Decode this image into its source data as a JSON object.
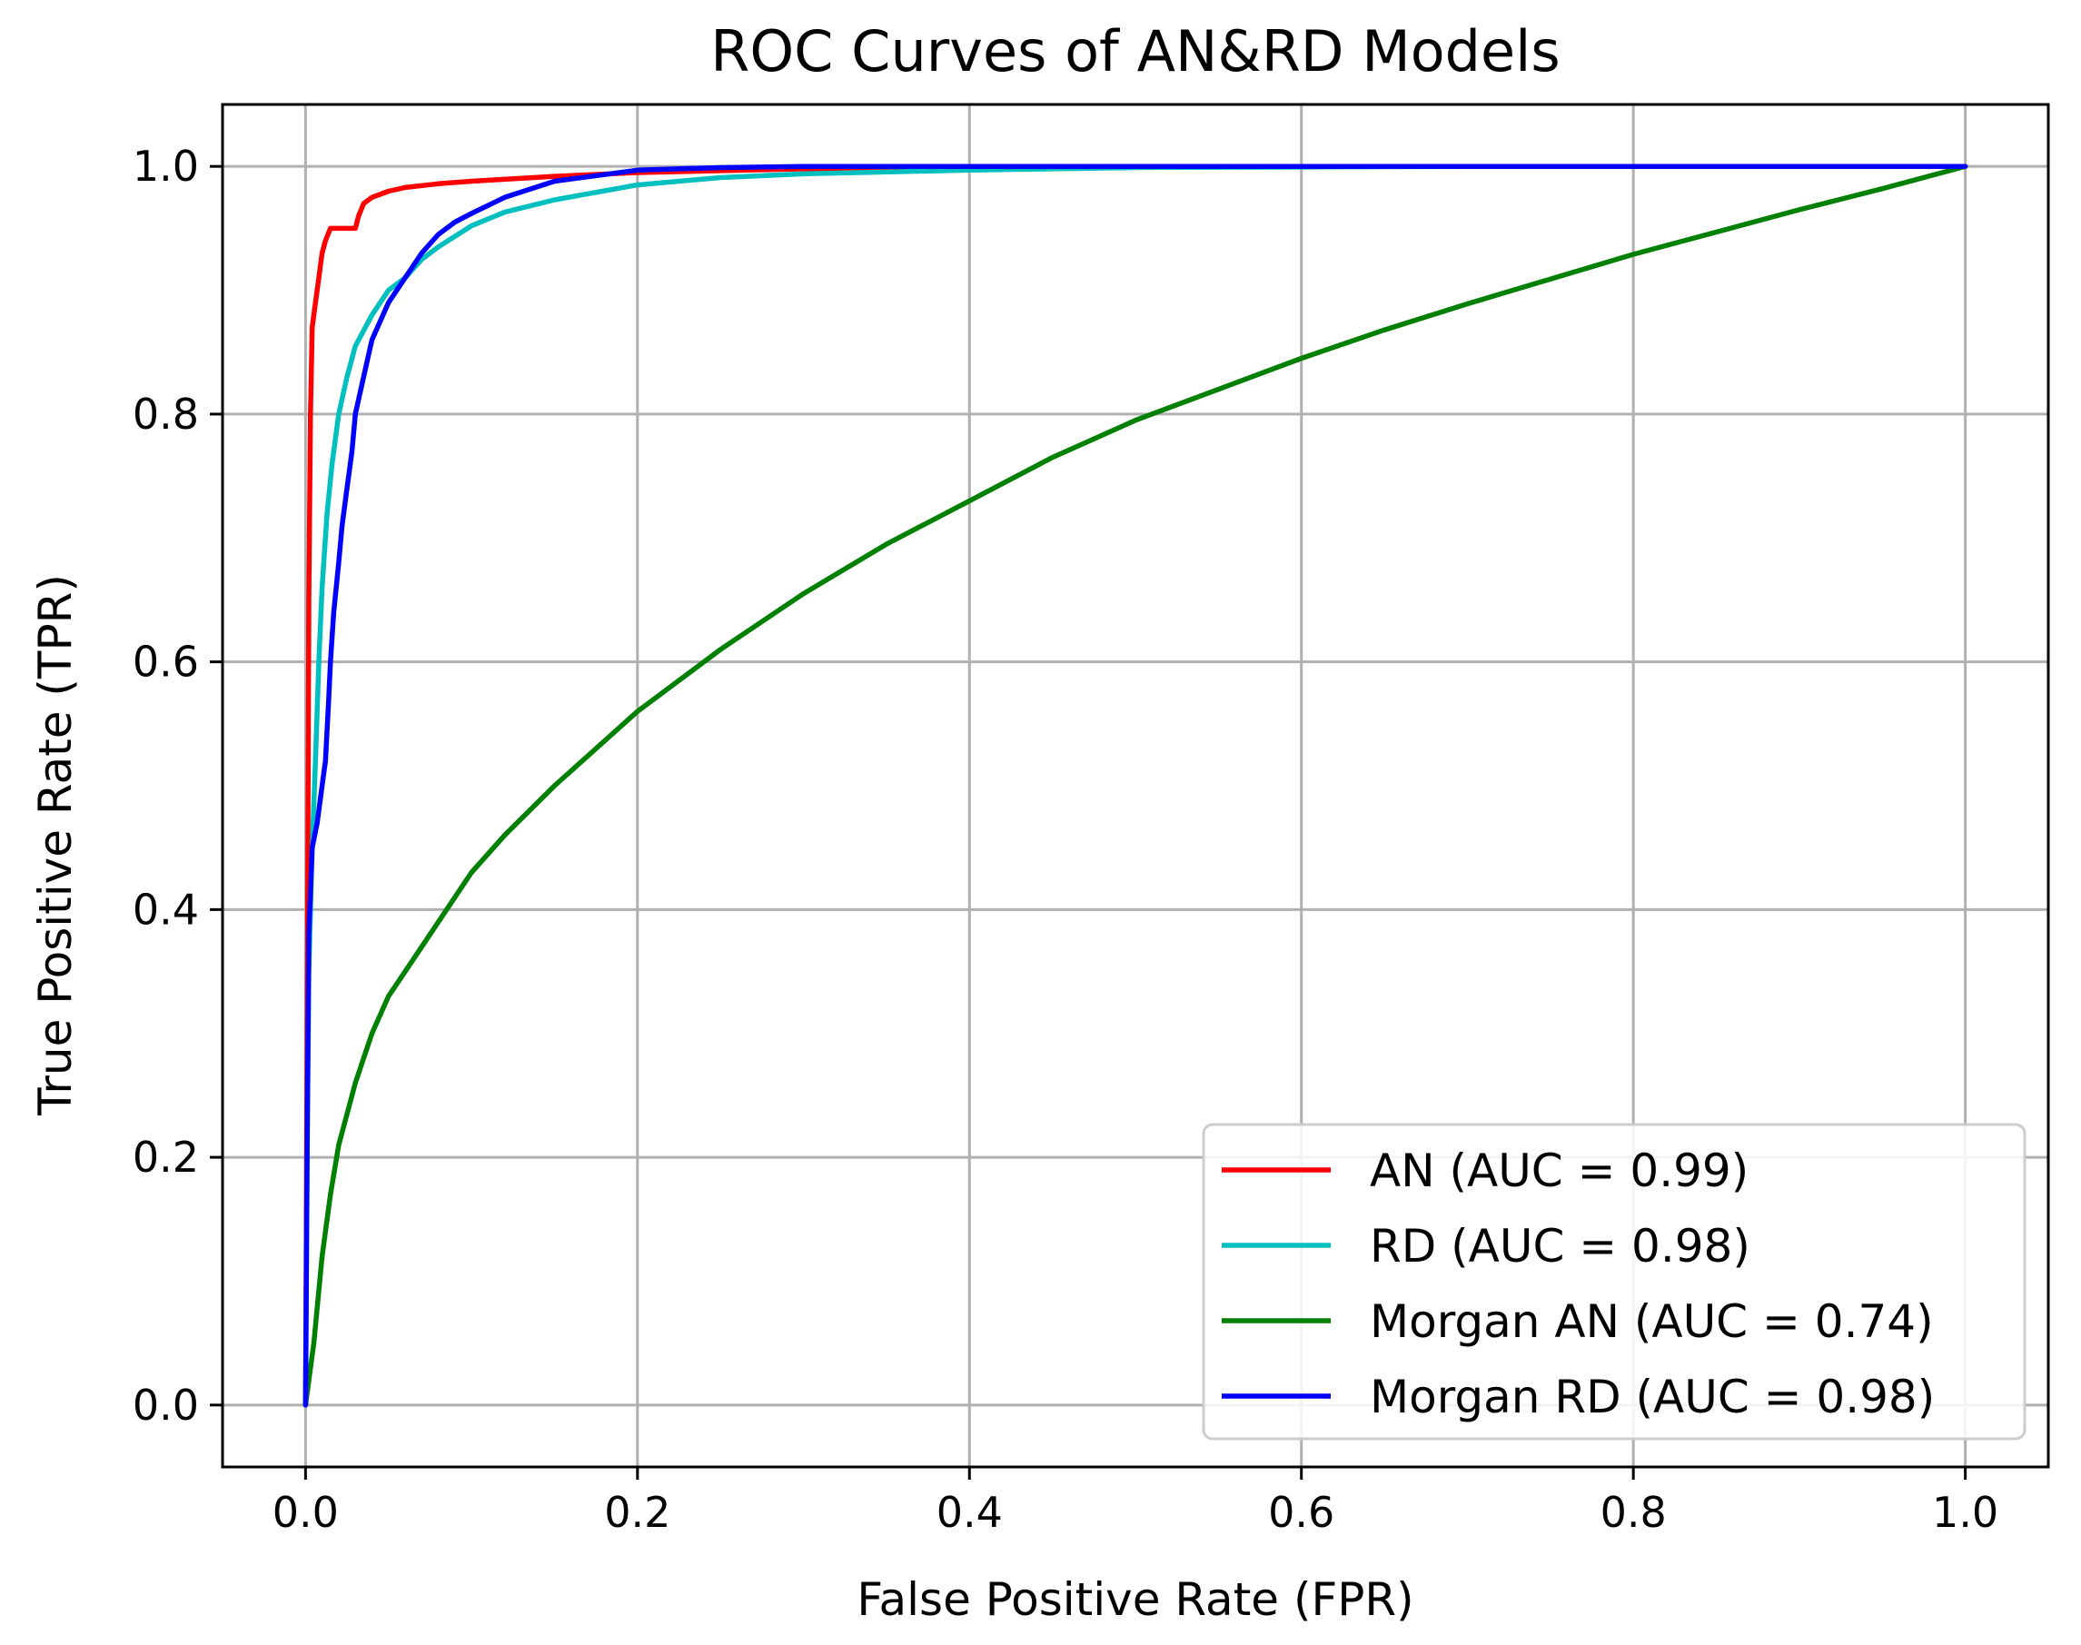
{
  "chart_data": {
    "type": "line",
    "title": "ROC Curves of AN&RD Models",
    "xlabel": "False Positive Rate (FPR)",
    "ylabel": "True Positive Rate (TPR)",
    "xlim": [
      -0.05,
      1.05
    ],
    "ylim": [
      -0.05,
      1.05
    ],
    "grid": true,
    "legend_position": "lower-right",
    "x_ticks": [
      0.0,
      0.2,
      0.4,
      0.6,
      0.8,
      1.0
    ],
    "x_tick_labels": [
      "0.0",
      "0.2",
      "0.4",
      "0.6",
      "0.8",
      "1.0"
    ],
    "y_ticks": [
      0.0,
      0.2,
      0.4,
      0.6,
      0.8,
      1.0
    ],
    "y_tick_labels": [
      "0.0",
      "0.2",
      "0.4",
      "0.6",
      "0.8",
      "1.0"
    ],
    "series": [
      {
        "name": "AN (AUC = 0.99)",
        "color": "#ff0000",
        "x": [
          0.0,
          0.001,
          0.002,
          0.003,
          0.004,
          0.006,
          0.008,
          0.01,
          0.012,
          0.015,
          0.02,
          0.025,
          0.03,
          0.032,
          0.035,
          0.04,
          0.05,
          0.06,
          0.08,
          0.1,
          0.15,
          0.2,
          0.3,
          0.5,
          1.0
        ],
        "y": [
          0.0,
          0.3,
          0.65,
          0.8,
          0.87,
          0.89,
          0.91,
          0.93,
          0.94,
          0.95,
          0.95,
          0.95,
          0.95,
          0.96,
          0.97,
          0.975,
          0.98,
          0.983,
          0.986,
          0.988,
          0.992,
          0.995,
          0.998,
          1.0,
          1.0
        ]
      },
      {
        "name": "RD (AUC = 0.98)",
        "color": "#00bfbf",
        "x": [
          0.0,
          0.001,
          0.002,
          0.004,
          0.006,
          0.008,
          0.01,
          0.013,
          0.016,
          0.02,
          0.025,
          0.03,
          0.04,
          0.05,
          0.06,
          0.07,
          0.08,
          0.1,
          0.12,
          0.15,
          0.2,
          0.25,
          0.3,
          0.4,
          0.5,
          0.7,
          1.0
        ],
        "y": [
          0.0,
          0.2,
          0.35,
          0.45,
          0.52,
          0.6,
          0.66,
          0.72,
          0.76,
          0.8,
          0.83,
          0.855,
          0.88,
          0.9,
          0.91,
          0.925,
          0.935,
          0.952,
          0.963,
          0.973,
          0.985,
          0.991,
          0.994,
          0.997,
          0.999,
          1.0,
          1.0
        ]
      },
      {
        "name": "Morgan AN (AUC = 0.74)",
        "color": "#008000",
        "x": [
          0.0,
          0.003,
          0.005,
          0.01,
          0.015,
          0.02,
          0.03,
          0.04,
          0.05,
          0.07,
          0.1,
          0.12,
          0.15,
          0.2,
          0.25,
          0.3,
          0.35,
          0.4,
          0.45,
          0.5,
          0.55,
          0.6,
          0.65,
          0.7,
          0.75,
          0.8,
          0.85,
          0.9,
          0.95,
          1.0
        ],
        "y": [
          0.0,
          0.03,
          0.05,
          0.12,
          0.17,
          0.21,
          0.26,
          0.3,
          0.33,
          0.37,
          0.43,
          0.46,
          0.5,
          0.56,
          0.61,
          0.655,
          0.695,
          0.73,
          0.765,
          0.795,
          0.82,
          0.845,
          0.868,
          0.889,
          0.909,
          0.929,
          0.947,
          0.965,
          0.982,
          1.0
        ]
      },
      {
        "name": "Morgan RD (AUC = 0.98)",
        "color": "#0000ff",
        "x": [
          0.0,
          0.001,
          0.002,
          0.004,
          0.007,
          0.01,
          0.012,
          0.014,
          0.015,
          0.017,
          0.02,
          0.022,
          0.025,
          0.028,
          0.03,
          0.035,
          0.04,
          0.05,
          0.06,
          0.07,
          0.08,
          0.09,
          0.1,
          0.12,
          0.15,
          0.2,
          0.25,
          0.3,
          0.5,
          1.0
        ],
        "y": [
          0.0,
          0.22,
          0.38,
          0.45,
          0.47,
          0.5,
          0.52,
          0.57,
          0.6,
          0.64,
          0.68,
          0.71,
          0.74,
          0.77,
          0.8,
          0.83,
          0.86,
          0.89,
          0.91,
          0.93,
          0.945,
          0.955,
          0.962,
          0.975,
          0.988,
          0.997,
          0.999,
          1.0,
          1.0,
          1.0
        ]
      }
    ]
  }
}
